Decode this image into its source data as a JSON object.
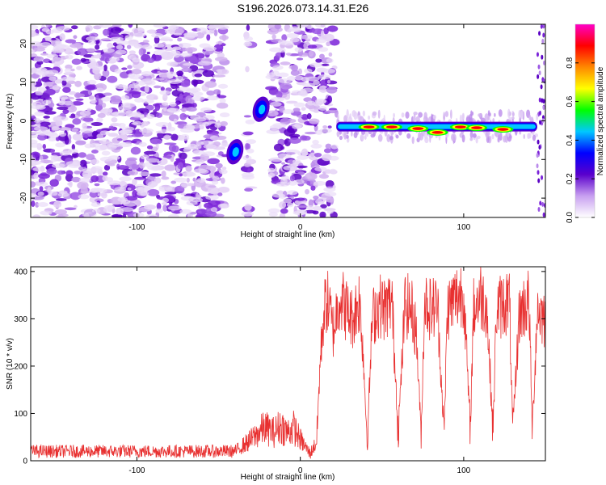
{
  "figure": {
    "title": "S196.2026.073.14.31.E26"
  },
  "colors": {
    "spectrogram_ramp": [
      "#ffffff",
      "#e0c8f4",
      "#9a4ee6",
      "#5a00cc",
      "#0000ff",
      "#00c8ff",
      "#00ff00",
      "#ffff00",
      "#ff8800",
      "#ff0000",
      "#ff00c8"
    ],
    "snr_line": "#e83030",
    "axis": "#000000"
  },
  "chart_data": [
    {
      "type": "heatmap",
      "name": "spectrogram",
      "xlabel": "Height of straight line (km)",
      "ylabel": "Frequency (Hz)",
      "xlim": [
        -165,
        150
      ],
      "ylim": [
        -25,
        25
      ],
      "xticks": [
        -100,
        0,
        100
      ],
      "yticks": [
        -20,
        -10,
        0,
        10,
        20
      ],
      "colorbar": {
        "label": "Normalized spectral amplitude",
        "range": [
          0,
          1
        ],
        "ticks": [
          0.0,
          0.2,
          0.4,
          0.6,
          0.8
        ]
      },
      "noise_columns_km": [
        [
          -165,
          -46
        ],
        [
          -33,
          -30
        ],
        [
          -18,
          21
        ]
      ],
      "edge_column_km": [
        145,
        150
      ],
      "features": [
        {
          "label": "blob",
          "x_km": -40,
          "freq_hz": -8,
          "amplitude": 0.4
        },
        {
          "label": "blob",
          "x_km": -24,
          "freq_hz": 3,
          "amplitude": 0.45
        },
        {
          "label": "carrier",
          "x_km": [
            22,
            145
          ],
          "freq_hz": -1.5
        }
      ],
      "carrier_peaks": [
        {
          "x_km": 42,
          "freq_hz": -1.6,
          "amplitude": 0.9
        },
        {
          "x_km": 56,
          "freq_hz": -1.6,
          "amplitude": 0.9
        },
        {
          "x_km": 72,
          "freq_hz": -2.0,
          "amplitude": 0.8
        },
        {
          "x_km": 84,
          "freq_hz": -3.0,
          "amplitude": 0.9
        },
        {
          "x_km": 98,
          "freq_hz": -1.6,
          "amplitude": 0.8
        },
        {
          "x_km": 108,
          "freq_hz": -1.8,
          "amplitude": 0.9
        },
        {
          "x_km": 124,
          "freq_hz": -2.2,
          "amplitude": 0.85
        }
      ]
    },
    {
      "type": "line",
      "name": "snr",
      "xlabel": "Height of straight line (km)",
      "ylabel": "SNR (10 * v/v)",
      "xlim": [
        -165,
        150
      ],
      "ylim": [
        0,
        410
      ],
      "xticks": [
        -100,
        0,
        100
      ],
      "yticks": [
        0,
        100,
        200,
        300,
        400
      ],
      "series": [
        {
          "name": "SNR",
          "x": [
            -165,
            -40,
            -30,
            -22,
            -16,
            -12,
            -8,
            -4,
            0,
            6,
            10,
            12,
            14,
            16,
            18,
            20,
            24,
            28,
            32,
            36,
            38,
            41,
            44,
            48,
            52,
            56,
            60,
            64,
            68,
            71,
            74,
            76,
            80,
            84,
            88,
            90,
            94,
            100,
            104,
            106,
            110,
            114,
            118,
            120,
            124,
            128,
            130,
            134,
            138,
            140,
            142,
            145,
            150
          ],
          "y": [
            20,
            20,
            45,
            70,
            60,
            75,
            60,
            70,
            45,
            15,
            40,
            200,
            300,
            340,
            320,
            270,
            350,
            320,
            300,
            340,
            260,
            40,
            300,
            330,
            320,
            340,
            60,
            330,
            320,
            270,
            50,
            340,
            320,
            330,
            55,
            320,
            340,
            360,
            60,
            320,
            350,
            330,
            60,
            320,
            330,
            340,
            60,
            310,
            330,
            340,
            60,
            320,
            300
          ]
        }
      ]
    }
  ]
}
